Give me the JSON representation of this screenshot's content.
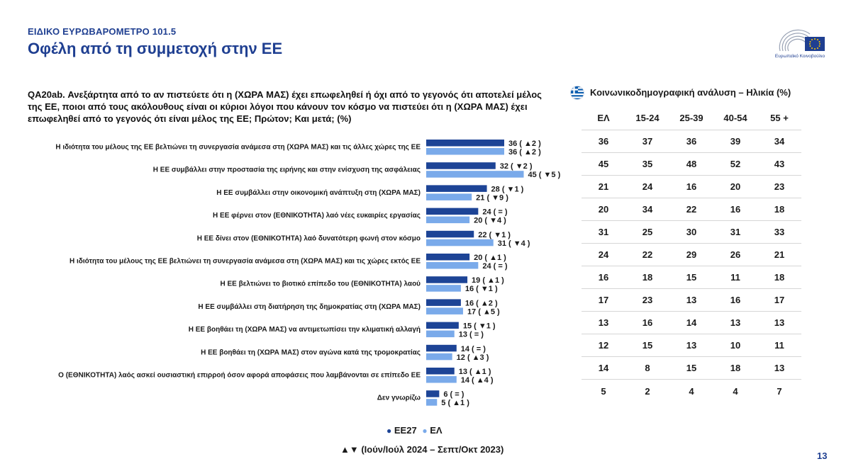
{
  "header": {
    "supertitle": "ΕΙΔΙΚΟ ΕΥΡΩΒΑΡΟΜΕΤΡΟ 101.5",
    "title": "Οφέλη από τη συμμετοχή στην ΕΕ",
    "logo_text": "Ευρωπαϊκό Κοινοβούλιο"
  },
  "question": "QA20ab. Ανεξάρτητα από το αν πιστεύετε ότι η (ΧΩΡΑ ΜΑΣ) έχει επωφεληθεί ή όχι από το γεγονός ότι αποτελεί μέλος της ΕΕ, ποιοι από τους ακόλουθους είναι οι κύριοι λόγοι που κάνουν τον κόσμο να πιστεύει ότι η (ΧΩΡΑ ΜΑΣ) έχει επωφεληθεί από το γεγονός ότι είναι μέλος της ΕΕ; Πρώτον; Και μετά; (%)",
  "legend": {
    "eu27": "ΕΕ27",
    "el": "ΕΛ",
    "footnote": "▲▼ (Ιούν/Ιούλ 2024 – Σεπτ/Οκτ 2023)"
  },
  "colors": {
    "eu27": "#1d4496",
    "el": "#7aaaea",
    "title": "#1f3f91"
  },
  "chart_data": {
    "type": "bar",
    "orientation": "horizontal",
    "xlim": [
      0,
      50
    ],
    "categories": [
      "Η ιδιότητα του μέλους της ΕΕ βελτιώνει τη συνεργασία ανάμεσα στη (ΧΩΡΑ ΜΑΣ) και τις άλλες χώρες της ΕΕ",
      "Η ΕΕ συμβάλλει στην προστασία της ειρήνης και στην ενίσχυση της ασφάλειας",
      "Η ΕΕ συμβάλλει στην οικονομική ανάπτυξη στη (ΧΩΡΑ ΜΑΣ)",
      "Η ΕΕ φέρνει στον (ΕΘΝΙΚΟΤΗΤΑ) λαό νέες ευκαιρίες εργασίας",
      "Η ΕΕ δίνει στον (ΕΘΝΙΚΟΤΗΤΑ) λαό δυνατότερη φωνή στον κόσμο",
      "Η ιδιότητα του μέλους της ΕΕ βελτιώνει τη συνεργασία ανάμεσα στη (ΧΩΡΑ ΜΑΣ) και τις χώρες εκτός ΕΕ",
      "Η ΕΕ βελτιώνει το βιοτικό επίπεδο του (ΕΘΝΙΚΟΤΗΤΑ) λαού",
      "Η ΕΕ συμβάλλει στη διατήρηση της δημοκρατίας στη (ΧΩΡΑ ΜΑΣ)",
      "Η ΕΕ βοηθάει τη (ΧΩΡΑ ΜΑΣ) να αντιμετωπίσει την κλιματική αλλαγή",
      "Η ΕΕ βοηθάει τη (ΧΩΡΑ ΜΑΣ) στον αγώνα κατά της τρομοκρατίας",
      "Ο (ΕΘΝΙΚΟΤΗΤΑ) λαός ασκεί ουσιαστική επιρροή όσον αφορά αποφάσεις που λαμβάνονται σε επίπεδο ΕΕ",
      "Δεν γνωρίζω"
    ],
    "series": [
      {
        "name": "ΕΕ27",
        "values": [
          36,
          32,
          28,
          24,
          22,
          20,
          19,
          16,
          15,
          14,
          13,
          6
        ],
        "labels": [
          "36 ( ▲2 )",
          "32 ( ▼2 )",
          "28 ( ▼1 )",
          "24 ( = )",
          "22 ( ▼1 )",
          "20 ( ▲1 )",
          "19 ( ▲1 )",
          "16 ( ▲2 )",
          "15 ( ▼1 )",
          "14 ( = )",
          "13 ( ▲1 )",
          "6 ( = )"
        ]
      },
      {
        "name": "ΕΛ",
        "values": [
          36,
          45,
          21,
          20,
          31,
          24,
          16,
          17,
          13,
          12,
          14,
          5
        ],
        "labels": [
          "36 ( ▲2 )",
          "45 ( ▼5 )",
          "21 ( ▼9 )",
          "20 ( ▼4 )",
          "31 ( ▼4 )",
          "24 ( = )",
          "16 ( ▼1 )",
          "17 ( ▲5 )",
          "13 ( = )",
          "12 ( ▲3 )",
          "14 ( ▲4 )",
          "5 ( ▲1 )"
        ]
      }
    ]
  },
  "table": {
    "title": "Κοινωνικοδημογραφική ανάλυση – Ηλικία (%)",
    "columns": [
      "ΕΛ",
      "15-24",
      "25-39",
      "40-54",
      "55 +"
    ],
    "rows": [
      [
        "36",
        "37",
        "36",
        "39",
        "34"
      ],
      [
        "45",
        "35",
        "48",
        "52",
        "43"
      ],
      [
        "21",
        "24",
        "16",
        "20",
        "23"
      ],
      [
        "20",
        "34",
        "22",
        "16",
        "18"
      ],
      [
        "31",
        "25",
        "30",
        "31",
        "33"
      ],
      [
        "24",
        "22",
        "29",
        "26",
        "21"
      ],
      [
        "16",
        "18",
        "15",
        "11",
        "18"
      ],
      [
        "17",
        "23",
        "13",
        "16",
        "17"
      ],
      [
        "13",
        "16",
        "14",
        "13",
        "13"
      ],
      [
        "12",
        "15",
        "13",
        "10",
        "11"
      ],
      [
        "14",
        "8",
        "15",
        "18",
        "13"
      ],
      [
        "5",
        "2",
        "4",
        "4",
        "7"
      ]
    ]
  },
  "page_number": "13"
}
